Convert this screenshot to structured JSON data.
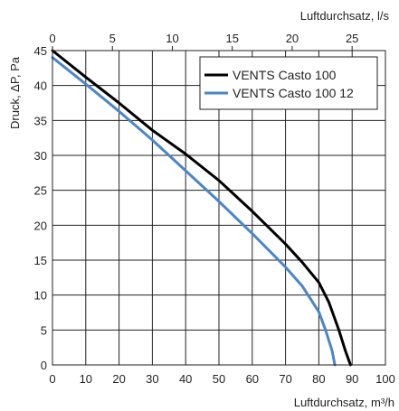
{
  "chart_data": {
    "type": "line",
    "ylabel": "Druck, ΔP, Pa",
    "xlabel_bottom": "Luftdurchsatz, m³/h",
    "xlabel_top": "Luftdurchsatz, l/s",
    "xlim": [
      0,
      100
    ],
    "ylim": [
      0,
      45
    ],
    "xlim_top": [
      0,
      27.78
    ],
    "x_ticks": [
      "0",
      "10",
      "20",
      "30",
      "40",
      "50",
      "60",
      "70",
      "80",
      "90",
      "100"
    ],
    "x_top_ticks": [
      "0",
      "5",
      "10",
      "15",
      "20",
      "25"
    ],
    "y_ticks": [
      "0",
      "5",
      "10",
      "15",
      "20",
      "25",
      "30",
      "35",
      "40",
      "45"
    ],
    "grid": true,
    "legend_position": "top-right",
    "series": [
      {
        "name": "VENTS Casto 100",
        "color": "#000000",
        "x": [
          0,
          10,
          20,
          30,
          40,
          50,
          60,
          70,
          75,
          80,
          83,
          86,
          88,
          89.5
        ],
        "y": [
          45,
          41.2,
          37.5,
          33.6,
          30.2,
          26.4,
          22,
          17.3,
          14.7,
          11.8,
          9,
          5,
          2,
          0
        ]
      },
      {
        "name": "VENTS Casto 100 12",
        "color": "#4a86c8",
        "x": [
          0,
          10,
          20,
          30,
          40,
          50,
          60,
          70,
          75,
          80,
          82,
          84,
          84.8
        ],
        "y": [
          44,
          40.2,
          36.3,
          32.2,
          27.8,
          23.4,
          18.8,
          14,
          11.3,
          7.6,
          5,
          2,
          0
        ]
      }
    ]
  }
}
